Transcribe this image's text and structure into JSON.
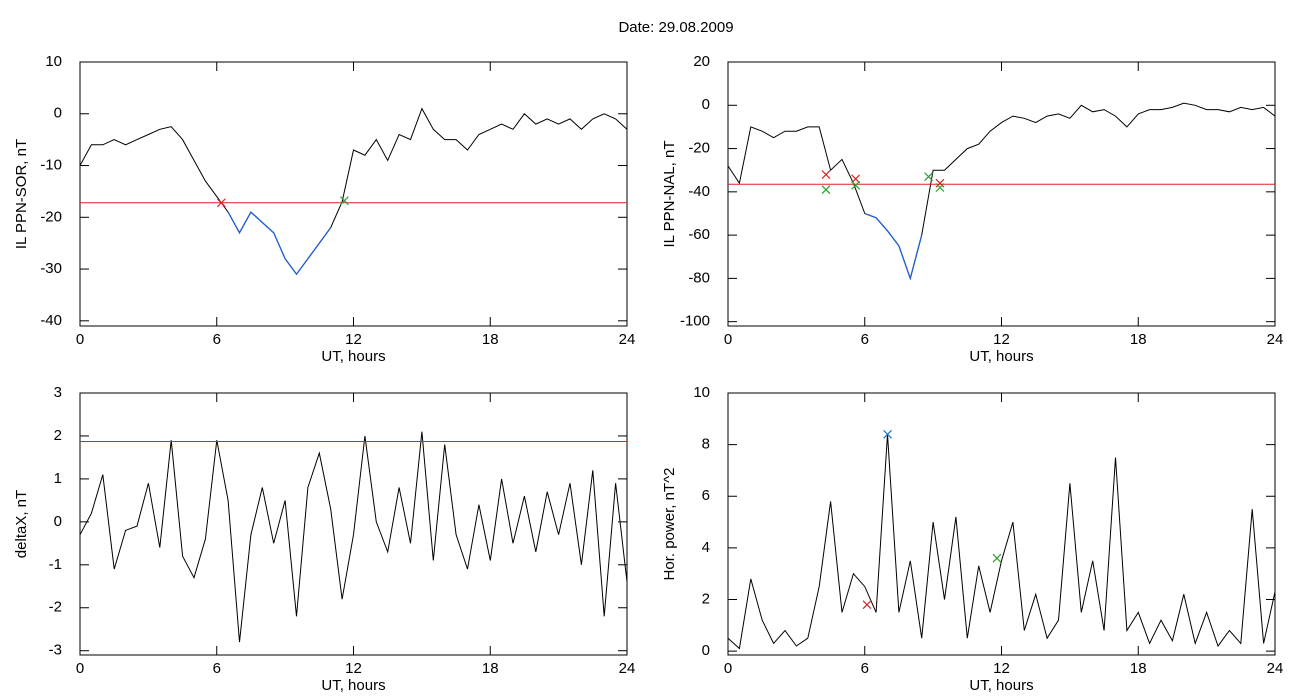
{
  "title": "Date:  29.08.2009",
  "chart_data": [
    {
      "type": "line",
      "ylabel": "IL PPN-SOR, nT",
      "xlabel": "UT, hours",
      "xlim": [
        0,
        24
      ],
      "xticks": [
        0,
        6,
        12,
        18,
        24
      ],
      "ylim": [
        -41,
        10
      ],
      "yticks": [
        -40,
        -30,
        -20,
        -10,
        0,
        10
      ],
      "x": [
        0,
        0.5,
        1,
        1.5,
        2,
        2.5,
        3,
        3.5,
        4,
        4.5,
        5,
        5.5,
        6,
        6.5,
        7,
        7.5,
        8,
        8.5,
        9,
        9.5,
        10,
        10.5,
        11,
        11.5,
        12,
        12.5,
        13,
        13.5,
        14,
        14.5,
        15,
        15.5,
        16,
        16.5,
        17,
        17.5,
        18,
        18.5,
        19,
        19.5,
        20,
        20.5,
        21,
        21.5,
        22,
        22.5,
        23,
        23.5,
        24
      ],
      "series": [
        {
          "color": "#000000",
          "highlight_color": "#1f5fd6",
          "values": [
            -10,
            -6,
            -6,
            -5,
            -6,
            -5,
            -4,
            -3,
            -2.5,
            -5,
            -9,
            -13,
            -16,
            -19,
            -23,
            -19,
            -21,
            -23,
            -28,
            -31,
            -28,
            -25,
            -22,
            -17,
            -7,
            -8,
            -5,
            -9,
            -4,
            -5,
            1,
            -3,
            -5,
            -5,
            -7,
            -4,
            -3,
            -2,
            -3,
            0,
            -2,
            -1,
            -2,
            -1,
            -3,
            -1,
            0,
            -1,
            -3
          ]
        }
      ],
      "threshold": -17.2,
      "threshold_color": "#e02020",
      "markers": [
        {
          "x": 6.2,
          "y": -17.2,
          "color": "#d62728"
        },
        {
          "x": 11.6,
          "y": -16.8,
          "color": "#2ca02c"
        }
      ]
    },
    {
      "type": "line",
      "ylabel": "IL PPN-NAL, nT",
      "xlabel": "UT, hours",
      "xlim": [
        0,
        24
      ],
      "xticks": [
        0,
        6,
        12,
        18,
        24
      ],
      "ylim": [
        -102,
        20
      ],
      "yticks": [
        -100,
        -80,
        -60,
        -40,
        -20,
        0,
        20
      ],
      "x": [
        0,
        0.5,
        1,
        1.5,
        2,
        2.5,
        3,
        3.5,
        4,
        4.5,
        5,
        5.5,
        6,
        6.5,
        7,
        7.5,
        8,
        8.5,
        9,
        9.5,
        10,
        10.5,
        11,
        11.5,
        12,
        12.5,
        13,
        13.5,
        14,
        14.5,
        15,
        15.5,
        16,
        16.5,
        17,
        17.5,
        18,
        18.5,
        19,
        19.5,
        20,
        20.5,
        21,
        21.5,
        22,
        22.5,
        23,
        23.5,
        24
      ],
      "series": [
        {
          "color": "#000000",
          "highlight_color": "#1f5fd6",
          "values": [
            -28,
            -36,
            -10,
            -12,
            -15,
            -12,
            -12,
            -10,
            -10,
            -30,
            -25,
            -36,
            -50,
            -52,
            -58,
            -65,
            -80,
            -60,
            -30,
            -30,
            -25,
            -20,
            -18,
            -12,
            -8,
            -5,
            -6,
            -8,
            -5,
            -4,
            -6,
            0,
            -3,
            -2,
            -5,
            -10,
            -4,
            -2,
            -2,
            -1,
            1,
            0,
            -2,
            -2,
            -3,
            -1,
            -2,
            -1,
            -5
          ]
        }
      ],
      "threshold": -36.5,
      "threshold_color": "#e02020",
      "markers": [
        {
          "x": 4.3,
          "y": -32,
          "color": "#d62728"
        },
        {
          "x": 4.3,
          "y": -39,
          "color": "#2ca02c"
        },
        {
          "x": 5.6,
          "y": -34,
          "color": "#d62728"
        },
        {
          "x": 5.6,
          "y": -37,
          "color": "#2ca02c"
        },
        {
          "x": 8.8,
          "y": -33,
          "color": "#2ca02c"
        },
        {
          "x": 9.3,
          "y": -36,
          "color": "#d62728"
        },
        {
          "x": 9.3,
          "y": -38,
          "color": "#2ca02c"
        }
      ]
    },
    {
      "type": "line",
      "ylabel": "deltaX, nT",
      "xlabel": "UT, hours",
      "xlim": [
        0,
        24
      ],
      "xticks": [
        0,
        6,
        12,
        18,
        24
      ],
      "ylim": [
        -3.1,
        3
      ],
      "yticks": [
        -3,
        -2,
        -1,
        0,
        1,
        2,
        3
      ],
      "x": [
        0,
        0.5,
        1,
        1.5,
        2,
        2.5,
        3,
        3.5,
        4,
        4.5,
        5,
        5.5,
        6,
        6.5,
        7,
        7.5,
        8,
        8.5,
        9,
        9.5,
        10,
        10.5,
        11,
        11.5,
        12,
        12.5,
        13,
        13.5,
        14,
        14.5,
        15,
        15.5,
        16,
        16.5,
        17,
        17.5,
        18,
        18.5,
        19,
        19.5,
        20,
        20.5,
        21,
        21.5,
        22,
        22.5,
        23,
        23.5,
        24
      ],
      "series": [
        {
          "color": "#000000",
          "values": [
            -0.3,
            0.2,
            1.1,
            -1.1,
            -0.2,
            -0.1,
            0.9,
            -0.6,
            1.9,
            -0.8,
            -1.3,
            -0.4,
            1.9,
            0.5,
            -2.8,
            -0.3,
            0.8,
            -0.5,
            0.5,
            -2.2,
            0.8,
            1.6,
            0.3,
            -1.8,
            -0.3,
            2.0,
            0.0,
            -0.7,
            0.8,
            -0.5,
            2.1,
            -0.9,
            1.8,
            -0.3,
            -1.1,
            0.4,
            -0.9,
            1.0,
            -0.5,
            0.6,
            -0.7,
            0.7,
            -0.3,
            0.9,
            -1.0,
            1.2,
            -2.2,
            0.9,
            -1.4
          ]
        }
      ],
      "threshold": 1.87,
      "threshold_color": "#e02020",
      "markers": []
    },
    {
      "type": "line",
      "ylabel": "Hor. power, nT^2",
      "xlabel": "UT, hours",
      "xlim": [
        0,
        24
      ],
      "xticks": [
        0,
        6,
        12,
        18,
        24
      ],
      "ylim": [
        -0.15,
        10
      ],
      "yticks": [
        0,
        2,
        4,
        6,
        8,
        10
      ],
      "x": [
        0,
        0.5,
        1,
        1.5,
        2,
        2.5,
        3,
        3.5,
        4,
        4.5,
        5,
        5.5,
        6,
        6.5,
        7,
        7.5,
        8,
        8.5,
        9,
        9.5,
        10,
        10.5,
        11,
        11.5,
        12,
        12.5,
        13,
        13.5,
        14,
        14.5,
        15,
        15.5,
        16,
        16.5,
        17,
        17.5,
        18,
        18.5,
        19,
        19.5,
        20,
        20.5,
        21,
        21.5,
        22,
        22.5,
        23,
        23.5,
        24
      ],
      "series": [
        {
          "color": "#000000",
          "values": [
            0.5,
            0.1,
            2.8,
            1.2,
            0.3,
            0.8,
            0.2,
            0.5,
            2.5,
            5.8,
            1.5,
            3,
            2.5,
            1.5,
            8.4,
            1.5,
            3.5,
            0.5,
            5,
            2,
            5.2,
            0.5,
            3.3,
            1.5,
            3.5,
            5,
            0.8,
            2.2,
            0.5,
            1.2,
            6.5,
            1.5,
            3.5,
            0.8,
            7.5,
            0.8,
            1.5,
            0.3,
            1.2,
            0.4,
            2.2,
            0.3,
            1.5,
            0.2,
            0.8,
            0.3,
            5.5,
            0.3,
            2.3
          ]
        }
      ],
      "markers": [
        {
          "x": 6.1,
          "y": 1.8,
          "color": "#d62728"
        },
        {
          "x": 7.0,
          "y": 8.4,
          "color": "#1f77b4"
        },
        {
          "x": 11.8,
          "y": 3.6,
          "color": "#2ca02c"
        }
      ]
    }
  ]
}
